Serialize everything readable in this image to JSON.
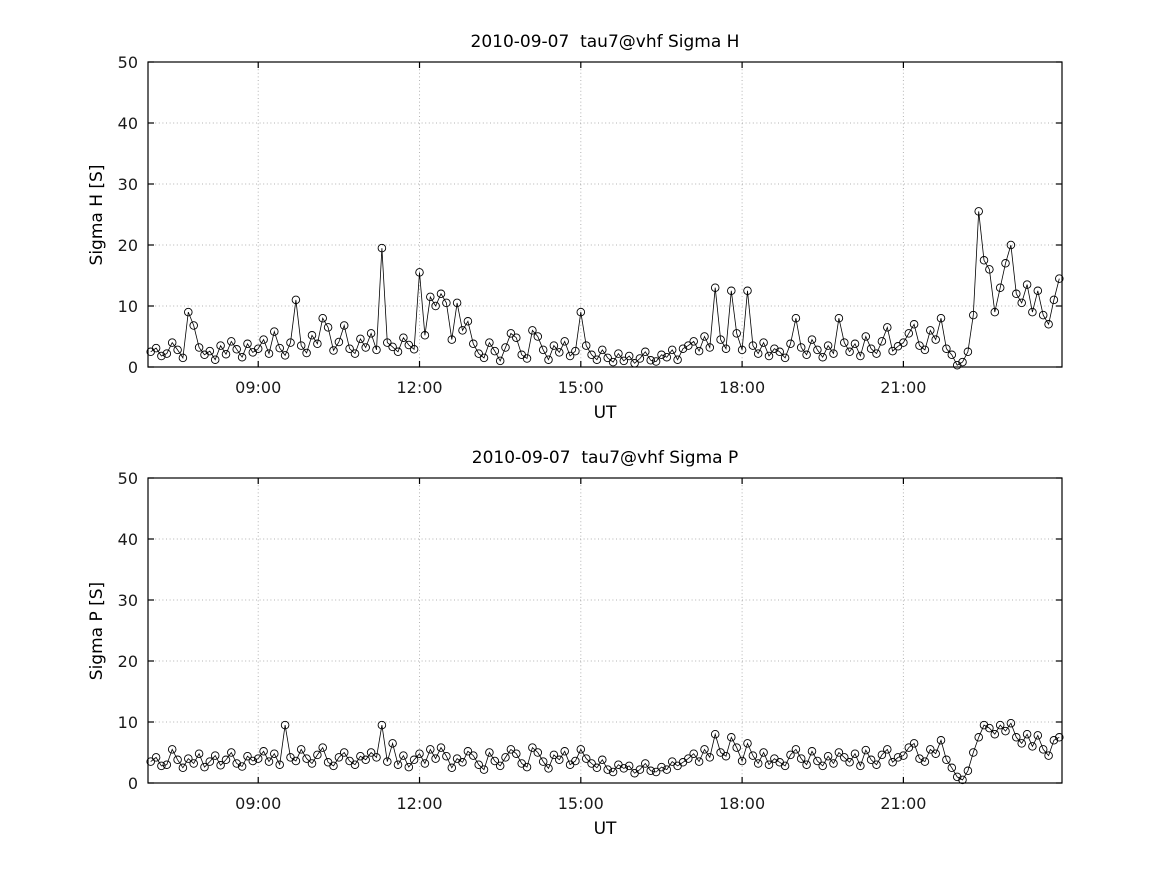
{
  "figure": {
    "background": "#ffffff",
    "axis_color": "#000000",
    "grid_color": "#b3b3b3",
    "series_color": "#000000",
    "tick_label_color": "#1a1a1a"
  },
  "chart_data": [
    {
      "type": "line",
      "title": "2010-09-07  tau7@vhf Sigma H",
      "xlabel": "UT",
      "ylabel": "Sigma H [S]",
      "ylim": [
        0,
        50
      ],
      "yticks": [
        0,
        10,
        20,
        30,
        40,
        50
      ],
      "xlim_hours": [
        6.95,
        23.95
      ],
      "xticks": [
        {
          "hour": 9,
          "label": "09:00"
        },
        {
          "hour": 12,
          "label": "12:00"
        },
        {
          "hour": 15,
          "label": "15:00"
        },
        {
          "hour": 18,
          "label": "18:00"
        },
        {
          "hour": 21,
          "label": "21:00"
        }
      ],
      "marker": "open-circle",
      "line_style": "solid",
      "grid": true,
      "legend": null,
      "x_start_hour": 7.0,
      "x_step_hours": 0.1,
      "values": [
        2.5,
        3.1,
        1.8,
        2.2,
        4.0,
        2.8,
        1.5,
        9.0,
        6.8,
        3.2,
        2.0,
        2.6,
        1.2,
        3.5,
        2.1,
        4.2,
        2.9,
        1.6,
        3.8,
        2.4,
        3.0,
        4.5,
        2.2,
        5.8,
        3.1,
        1.9,
        4.0,
        11.0,
        3.5,
        2.3,
        5.2,
        3.8,
        8.0,
        6.5,
        2.7,
        4.1,
        6.8,
        3.0,
        2.2,
        4.6,
        3.2,
        5.5,
        2.8,
        19.5,
        4.0,
        3.3,
        2.5,
        4.8,
        3.6,
        2.9,
        15.5,
        5.2,
        11.5,
        10.0,
        12.0,
        10.5,
        4.5,
        10.5,
        6.0,
        7.5,
        3.8,
        2.2,
        1.5,
        4.0,
        2.6,
        1.0,
        3.2,
        5.5,
        4.8,
        2.0,
        1.4,
        6.0,
        5.0,
        2.8,
        1.2,
        3.5,
        2.4,
        4.2,
        1.8,
        2.6,
        9.0,
        3.5,
        2.0,
        1.2,
        2.8,
        1.5,
        0.8,
        2.2,
        1.0,
        1.8,
        0.6,
        1.4,
        2.5,
        1.1,
        0.9,
        2.0,
        1.6,
        2.8,
        1.2,
        3.0,
        3.5,
        4.2,
        2.6,
        5.0,
        3.2,
        13.0,
        4.5,
        3.0,
        12.5,
        5.5,
        2.8,
        12.5,
        3.5,
        2.2,
        4.0,
        1.8,
        3.0,
        2.5,
        1.5,
        3.8,
        8.0,
        3.2,
        2.0,
        4.5,
        2.8,
        1.6,
        3.5,
        2.2,
        8.0,
        4.0,
        2.5,
        3.8,
        1.8,
        5.0,
        3.0,
        2.2,
        4.2,
        6.5,
        2.6,
        3.4,
        4.0,
        5.5,
        7.0,
        3.5,
        2.8,
        6.0,
        4.5,
        8.0,
        3.0,
        2.0,
        0.3,
        0.8,
        2.5,
        8.5,
        25.5,
        17.5,
        16.0,
        9.0,
        13.0,
        17.0,
        20.0,
        12.0,
        10.5,
        13.5,
        9.0,
        12.5,
        8.5,
        7.0,
        11.0,
        14.5
      ]
    },
    {
      "type": "line",
      "title": "2010-09-07  tau7@vhf Sigma P",
      "xlabel": "UT",
      "ylabel": "Sigma P [S]",
      "ylim": [
        0,
        50
      ],
      "yticks": [
        0,
        10,
        20,
        30,
        40,
        50
      ],
      "xlim_hours": [
        6.95,
        23.95
      ],
      "xticks": [
        {
          "hour": 9,
          "label": "09:00"
        },
        {
          "hour": 12,
          "label": "12:00"
        },
        {
          "hour": 15,
          "label": "15:00"
        },
        {
          "hour": 18,
          "label": "18:00"
        },
        {
          "hour": 21,
          "label": "21:00"
        }
      ],
      "marker": "open-circle",
      "line_style": "solid",
      "grid": true,
      "legend": null,
      "x_start_hour": 7.0,
      "x_step_hours": 0.1,
      "values": [
        3.5,
        4.2,
        2.8,
        3.0,
        5.5,
        3.8,
        2.5,
        4.0,
        3.2,
        4.8,
        2.6,
        3.5,
        4.5,
        2.9,
        3.8,
        5.0,
        3.2,
        2.7,
        4.4,
        3.6,
        4.0,
        5.2,
        3.5,
        4.8,
        3.0,
        9.5,
        4.2,
        3.6,
        5.5,
        4.0,
        3.2,
        4.6,
        5.8,
        3.4,
        2.8,
        4.2,
        5.0,
        3.6,
        3.0,
        4.4,
        3.8,
        5.0,
        4.2,
        9.5,
        3.5,
        6.5,
        3.0,
        4.5,
        2.6,
        3.8,
        4.8,
        3.2,
        5.5,
        4.0,
        5.8,
        4.4,
        2.5,
        4.0,
        3.4,
        5.2,
        4.5,
        3.0,
        2.2,
        5.0,
        3.6,
        2.8,
        4.2,
        5.5,
        4.8,
        3.2,
        2.6,
        5.8,
        5.0,
        3.5,
        2.4,
        4.6,
        3.8,
        5.2,
        3.0,
        3.6,
        5.5,
        4.0,
        3.2,
        2.5,
        3.8,
        2.2,
        1.8,
        3.0,
        2.4,
        2.8,
        1.6,
        2.2,
        3.2,
        2.0,
        1.8,
        2.6,
        2.2,
        3.5,
        2.8,
        3.4,
        4.0,
        4.8,
        3.5,
        5.5,
        4.2,
        8.0,
        5.0,
        4.4,
        7.5,
        5.8,
        3.6,
        6.5,
        4.5,
        3.2,
        5.0,
        3.0,
        4.0,
        3.4,
        2.8,
        4.6,
        5.5,
        4.0,
        3.0,
        5.2,
        3.6,
        2.8,
        4.4,
        3.2,
        5.0,
        4.2,
        3.4,
        4.8,
        2.8,
        5.4,
        3.8,
        3.0,
        4.6,
        5.5,
        3.4,
        4.2,
        4.5,
        5.8,
        6.5,
        4.0,
        3.5,
        5.5,
        4.8,
        7.0,
        3.8,
        2.5,
        1.0,
        0.5,
        2.0,
        5.0,
        7.5,
        9.5,
        9.0,
        8.0,
        9.5,
        8.5,
        9.8,
        7.5,
        6.5,
        8.0,
        6.0,
        7.8,
        5.5,
        4.5,
        7.0,
        7.5
      ]
    }
  ]
}
